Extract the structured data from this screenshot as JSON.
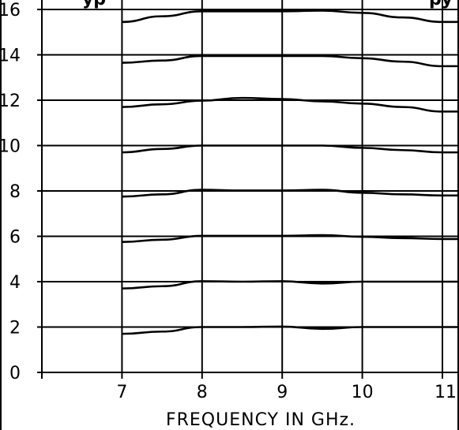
{
  "chart_data": {
    "type": "line",
    "title": "",
    "title_fragments": {
      "left": "yp",
      "right": "py"
    },
    "xlabel": "FREQUENCY IN GHz.",
    "ylabel": "",
    "xlim": [
      6,
      11
    ],
    "ylim": [
      0,
      16
    ],
    "x_ticks": [
      7,
      8,
      9,
      10,
      11
    ],
    "x_tick_labels": [
      "7",
      "8",
      "9",
      "10",
      "11"
    ],
    "y_ticks": [
      0,
      2,
      4,
      6,
      8,
      10,
      12,
      14,
      16
    ],
    "y_tick_labels": [
      "0",
      "2",
      "4",
      "6",
      "8",
      "10",
      "12",
      "14",
      "16"
    ],
    "grid": true,
    "line_color": "#000000",
    "series": [
      {
        "x": [
          7,
          7.5,
          8,
          8.5,
          9,
          9.5,
          10,
          10.5,
          11
        ],
        "values": [
          1.7,
          1.8,
          2.0,
          2.0,
          2.02,
          1.92,
          2.0,
          2.0,
          2.0
        ]
      },
      {
        "x": [
          7,
          7.5,
          8,
          8.5,
          9,
          9.5,
          10,
          10.5,
          11
        ],
        "values": [
          3.7,
          3.8,
          4.02,
          4.0,
          4.02,
          3.92,
          4.0,
          4.0,
          4.0
        ]
      },
      {
        "x": [
          7,
          7.5,
          8,
          8.5,
          9,
          9.5,
          10,
          10.5,
          11
        ],
        "values": [
          5.75,
          5.85,
          6.02,
          6.02,
          6.02,
          6.05,
          5.98,
          5.92,
          5.88
        ]
      },
      {
        "x": [
          7,
          7.5,
          8,
          8.5,
          9,
          9.5,
          10,
          10.5,
          11
        ],
        "values": [
          7.75,
          7.85,
          8.05,
          8.02,
          8.02,
          8.05,
          7.92,
          7.85,
          7.8
        ]
      },
      {
        "x": [
          7,
          7.5,
          8,
          8.5,
          9,
          9.5,
          10,
          10.5,
          11
        ],
        "values": [
          9.7,
          9.85,
          10.0,
          10.0,
          10.0,
          10.0,
          9.9,
          9.8,
          9.7
        ]
      },
      {
        "x": [
          7,
          7.5,
          8,
          8.5,
          9,
          9.5,
          10,
          10.5,
          11
        ],
        "values": [
          11.7,
          11.82,
          11.98,
          12.1,
          12.05,
          11.95,
          11.85,
          11.7,
          11.5
        ]
      },
      {
        "x": [
          7,
          7.5,
          8,
          8.5,
          9,
          9.5,
          10,
          10.5,
          11
        ],
        "values": [
          13.65,
          13.75,
          13.95,
          13.95,
          13.95,
          13.95,
          13.85,
          13.7,
          13.5
        ]
      },
      {
        "x": [
          7,
          7.5,
          8,
          8.5,
          9,
          9.5,
          10,
          10.5,
          11
        ],
        "values": [
          15.45,
          15.7,
          15.92,
          15.92,
          15.92,
          15.95,
          15.85,
          15.65,
          15.45
        ]
      }
    ]
  }
}
